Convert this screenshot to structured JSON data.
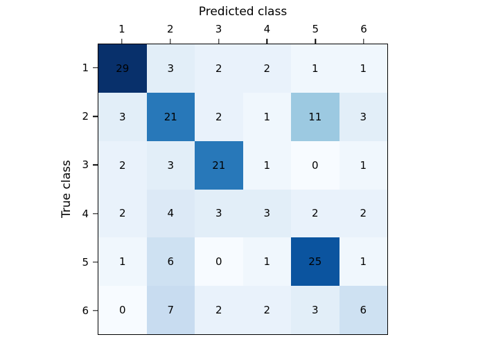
{
  "figure": {
    "background_color": "#ffffff",
    "axes_edge_color": "#000000",
    "tick_color": "#000000",
    "text_color": "#000000"
  },
  "chart_data": {
    "type": "heatmap",
    "title": "",
    "xlabel": "Predicted class",
    "ylabel": "True class",
    "x_tick_labels": [
      "1",
      "2",
      "3",
      "4",
      "5",
      "6"
    ],
    "y_tick_labels": [
      "1",
      "2",
      "3",
      "4",
      "5",
      "6"
    ],
    "matrix": [
      [
        29,
        3,
        2,
        2,
        1,
        1
      ],
      [
        3,
        21,
        2,
        1,
        11,
        3
      ],
      [
        2,
        3,
        21,
        1,
        0,
        1
      ],
      [
        2,
        4,
        3,
        3,
        2,
        2
      ],
      [
        1,
        6,
        0,
        1,
        25,
        1
      ],
      [
        0,
        7,
        2,
        2,
        3,
        6
      ]
    ],
    "vmin": 0,
    "vmax": 29,
    "colormap": "Blues",
    "colormap_stops": [
      "#f7fbff",
      "#deebf7",
      "#c6dbef",
      "#9ecae1",
      "#6baed6",
      "#4292c6",
      "#2171b5",
      "#08519c",
      "#08306b"
    ],
    "cell_text_color": "#000000",
    "grid": false,
    "legend": "none"
  }
}
